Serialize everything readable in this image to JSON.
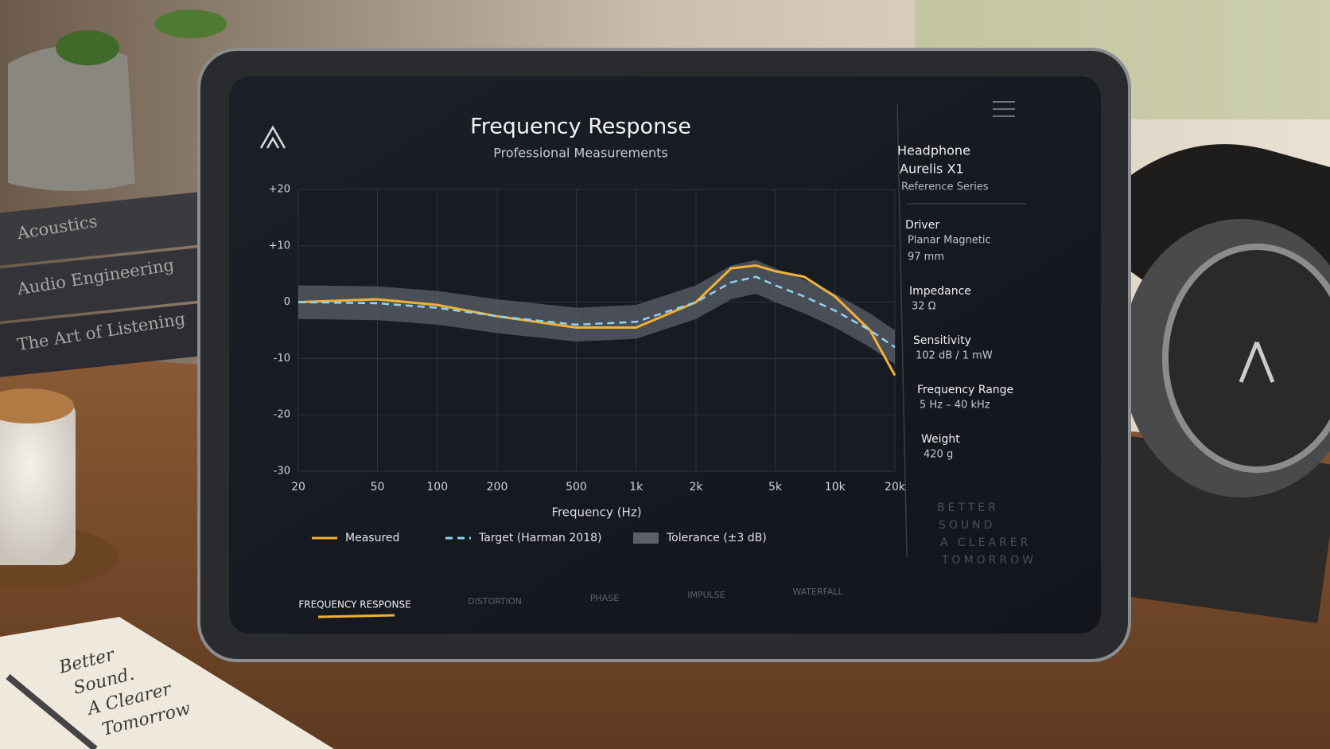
{
  "chart_data": {
    "type": "line",
    "title": "Frequency Response",
    "subtitle": "Professional Measurements",
    "x_label": "Frequency (Hz)",
    "x_scale": "log",
    "x": [
      20,
      50,
      100,
      200,
      500,
      1000,
      2000,
      3000,
      4000,
      5000,
      7000,
      10000,
      15000,
      20000
    ],
    "series": [
      {
        "name": "Measured",
        "color": "#f2b134",
        "style": "solid",
        "values": [
          0,
          0.5,
          -0.5,
          -2.5,
          -4.5,
          -4.5,
          0,
          6,
          6.5,
          5.5,
          4.5,
          1,
          -5,
          -13
        ]
      },
      {
        "name": "Target (Harman 2018)",
        "color": "#8fd3f4",
        "style": "dashed",
        "values": [
          0,
          -0.2,
          -1,
          -2.5,
          -4,
          -3.5,
          0,
          3.5,
          4.5,
          3,
          1,
          -1.5,
          -5,
          -8
        ]
      },
      {
        "name": "Tolerance (±3 dB)",
        "color": "#5b6069",
        "style": "band",
        "upper": [
          3,
          2.8,
          2,
          0.5,
          -1,
          -0.5,
          3,
          6.5,
          7.5,
          6,
          4,
          1.5,
          -2,
          -5
        ],
        "lower": [
          -3,
          -3.2,
          -4,
          -5.5,
          -7,
          -6.5,
          -3,
          0.5,
          1.5,
          0,
          -2,
          -4.5,
          -8,
          -11
        ]
      }
    ],
    "xlim": [
      20,
      20000
    ],
    "xticks": [
      20,
      50,
      100,
      200,
      500,
      {
        "value": 1000,
        "label": "1k"
      },
      {
        "value": 2000,
        "label": "2k"
      },
      {
        "value": 5000,
        "label": "5k"
      },
      {
        "value": 10000,
        "label": "10k"
      },
      {
        "value": 20000,
        "label": "20k"
      }
    ],
    "ylim": [
      -30,
      20
    ],
    "yticks": [
      {
        "value": 20,
        "label": "+20"
      },
      {
        "value": 10,
        "label": "+10"
      },
      0,
      -10,
      -20,
      -30
    ],
    "grid": true,
    "legend": "bottom"
  },
  "spec_panel": {
    "title": "Headphone",
    "model": "Aurelis X1",
    "edition": "Reference Series",
    "specs": [
      {
        "label": "Driver",
        "lines": [
          "Planar Magnetic",
          "97 mm"
        ]
      },
      {
        "label": "Impedance",
        "lines": [
          "32 Ω"
        ]
      },
      {
        "label": "Sensitivity",
        "lines": [
          "102 dB / 1 mW"
        ]
      },
      {
        "label": "Frequency Range",
        "lines": [
          "5 Hz – 40 kHz"
        ]
      },
      {
        "label": "Weight",
        "lines": [
          "420 g"
        ]
      }
    ],
    "tagline": [
      "BETTER",
      "SOUND",
      "A CLEARER",
      "TOMORROW"
    ]
  },
  "tabs": [
    {
      "label": "FREQUENCY RESPONSE",
      "active": true
    },
    {
      "label": "DISTORTION",
      "active": false
    },
    {
      "label": "PHASE",
      "active": false
    },
    {
      "label": "IMPULSE",
      "active": false
    },
    {
      "label": "WATERFALL",
      "active": false
    }
  ],
  "scene": {
    "books": [
      "Acoustics",
      "Audio Engineering",
      "The Art of Listening"
    ],
    "note": [
      "Better",
      "Sound.",
      "A Clearer",
      "Tomorrow"
    ]
  }
}
